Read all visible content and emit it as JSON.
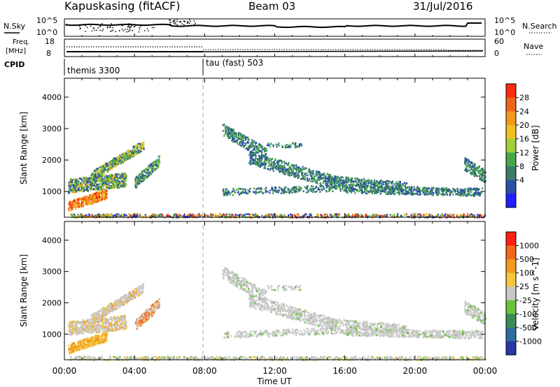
{
  "header": {
    "station": "Kapuskasing (fitACF)",
    "beam": "Beam 03",
    "date": "31/Jul/2016"
  },
  "top_panels": {
    "nsky_label": "N.Sky",
    "nsky_ticks": [
      "10^5",
      "10^0"
    ],
    "nsearch_label": "N.Search",
    "nsearch_ticks": [
      "10^5",
      "10^0"
    ],
    "freq_label": "Freq.",
    "freq_unit": "[MHz]",
    "freq_ticks": [
      "18",
      "8"
    ],
    "nave_label": "Nave",
    "nave_ticks": [
      "60",
      "0"
    ],
    "cpid_label": "CPID",
    "cpid_modes": [
      "themis 3300",
      "tau (fast) 503"
    ]
  },
  "colors": {
    "power_scale": [
      "#1f1fff",
      "#2a4fa8",
      "#3b7c6a",
      "#48a64a",
      "#9fd03a",
      "#f0c020",
      "#f09a1a",
      "#f06418",
      "#ff2a12"
    ],
    "velocity_scale": [
      "#2836a8",
      "#2f6da0",
      "#3b8d55",
      "#68c23a",
      "#c8c8c8",
      "#f4c63a",
      "#f29a22",
      "#f2661a",
      "#ff2010"
    ]
  },
  "chart_data": [
    {
      "type": "heatmap",
      "title": "",
      "xlabel": "",
      "ylabel": "Slant Range [km]",
      "x_ticks": [
        "00:00",
        "04:00",
        "08:00",
        "12:00",
        "16:00",
        "20:00",
        "00:00"
      ],
      "xlim_hours": [
        0,
        24
      ],
      "y_ticks": [
        "1000",
        "2000",
        "3000",
        "4000"
      ],
      "ylim_km": [
        180,
        4600
      ],
      "colorbar_label": "Power [dB]",
      "colorbar_ticks": [
        "4",
        "8",
        "12",
        "16",
        "20",
        "24",
        "28"
      ],
      "clim": [
        0,
        30
      ]
    },
    {
      "type": "heatmap",
      "title": "",
      "xlabel": "Time UT",
      "ylabel": "Slant Range [km]",
      "x_ticks": [
        "00:00",
        "04:00",
        "08:00",
        "12:00",
        "16:00",
        "20:00",
        "00:00"
      ],
      "xlim_hours": [
        0,
        24
      ],
      "y_ticks": [
        "1000",
        "2000",
        "3000",
        "4000"
      ],
      "ylim_km": [
        180,
        4600
      ],
      "colorbar_label": "Velocity [m s^-1]",
      "colorbar_ticks": [
        "1000",
        "500",
        "100",
        "25",
        "-25",
        "-100",
        "-500",
        "-1000"
      ]
    }
  ]
}
